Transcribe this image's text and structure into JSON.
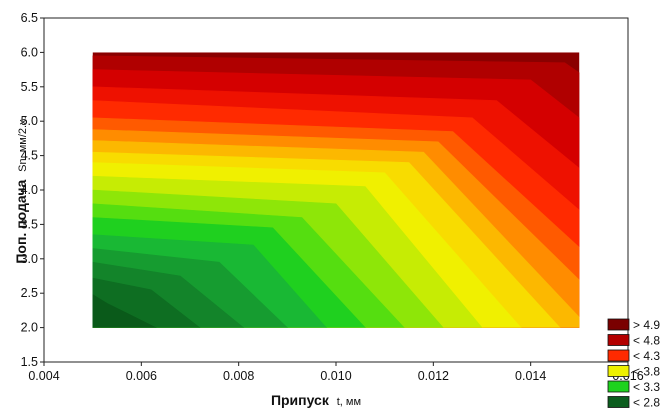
{
  "chart_data": {
    "type": "contour",
    "xlabel": "Припуск",
    "xlabel_unit": "t, мм",
    "ylabel": "Поп. подача",
    "ylabel_unit": "Sn, мм/2.х.",
    "xlim": [
      0.004,
      0.016
    ],
    "ylim": [
      1.5,
      6.5
    ],
    "x_ticks": [
      0.004,
      0.006,
      0.008,
      0.01,
      0.012,
      0.014,
      0.016
    ],
    "x_tick_labels": [
      "0.004",
      "0.006",
      "0.008",
      "0.010",
      "0.012",
      "0.014",
      "0.016"
    ],
    "y_ticks": [
      1.5,
      2.0,
      2.5,
      3.0,
      3.5,
      4.0,
      4.5,
      5.0,
      5.5,
      6.0,
      6.5
    ],
    "y_tick_labels": [
      "1.5",
      "2.0",
      "2.5",
      "3.0",
      "3.5",
      "4.0",
      "4.5",
      "5.0",
      "5.5",
      "6.0",
      "6.5"
    ],
    "data_extent": {
      "x": [
        0.005,
        0.015
      ],
      "y": [
        2.0,
        6.0
      ]
    },
    "grid": false,
    "legend_position": "bottom-right",
    "legend": [
      {
        "label": "> 4.9",
        "color": "#7a0000"
      },
      {
        "label": "< 4.8",
        "color": "#b30000"
      },
      {
        "label": "< 4.3",
        "color": "#ff2a00"
      },
      {
        "label": "< 3.8",
        "color": "#eef000"
      },
      {
        "label": "< 3.3",
        "color": "#1ed21e"
      },
      {
        "label": "< 2.8",
        "color": "#0b5d1e"
      }
    ],
    "contour_bands": [
      {
        "level": 2.4,
        "color": "#0a5a1a",
        "x_at_ymin": 0.0063,
        "x_at_kink": 0.0053,
        "y_kink": 2.35,
        "y_at_xmin": 2.48
      },
      {
        "level": 2.55,
        "color": "#0e6e22",
        "x_at_ymin": 0.0072,
        "x_at_kink": 0.0062,
        "y_kink": 2.55,
        "y_at_xmin": 2.72
      },
      {
        "level": 2.7,
        "color": "#13842a",
        "x_at_ymin": 0.0081,
        "x_at_kink": 0.0068,
        "y_kink": 2.75,
        "y_at_xmin": 2.95
      },
      {
        "level": 2.85,
        "color": "#169c30",
        "x_at_ymin": 0.009,
        "x_at_kink": 0.0076,
        "y_kink": 2.95,
        "y_at_xmin": 3.15
      },
      {
        "level": 3.0,
        "color": "#19b834",
        "x_at_ymin": 0.0098,
        "x_at_kink": 0.0083,
        "y_kink": 3.2,
        "y_at_xmin": 3.35
      },
      {
        "level": 3.15,
        "color": "#1fd01f",
        "x_at_ymin": 0.0106,
        "x_at_kink": 0.0087,
        "y_kink": 3.45,
        "y_at_xmin": 3.6
      },
      {
        "level": 3.3,
        "color": "#55de10",
        "x_at_ymin": 0.0114,
        "x_at_kink": 0.0093,
        "y_kink": 3.6,
        "y_at_xmin": 3.8
      },
      {
        "level": 3.45,
        "color": "#8ee608",
        "x_at_ymin": 0.0122,
        "x_at_kink": 0.01,
        "y_kink": 3.8,
        "y_at_xmin": 4.0
      },
      {
        "level": 3.6,
        "color": "#c6ec04",
        "x_at_ymin": 0.013,
        "x_at_kink": 0.0106,
        "y_kink": 4.05,
        "y_at_xmin": 4.2
      },
      {
        "level": 3.75,
        "color": "#f0f000",
        "x_at_ymin": 0.0138,
        "x_at_kink": 0.011,
        "y_kink": 4.25,
        "y_at_xmin": 4.4
      },
      {
        "level": 3.9,
        "color": "#f8dc00",
        "x_at_ymin": 0.0146,
        "x_at_kink": 0.0115,
        "y_kink": 4.4,
        "y_at_xmin": 4.55
      },
      {
        "level": 4.05,
        "color": "#fcb800",
        "x_at_ymin": 0.0152,
        "x_at_kink": 0.0118,
        "y_kink": 4.55,
        "y_at_xmin": 4.72
      },
      {
        "level": 4.2,
        "color": "#ff8c00",
        "x_at_ymin": 0.016,
        "x_at_kink": 0.0121,
        "y_kink": 4.7,
        "y_at_xmin": 4.88
      },
      {
        "level": 4.35,
        "color": "#ff5a00",
        "x_at_ymin": 0.0168,
        "x_at_kink": 0.0124,
        "y_kink": 4.85,
        "y_at_xmin": 5.05
      },
      {
        "level": 4.5,
        "color": "#ff2a00",
        "x_at_ymin": 0.0178,
        "x_at_kink": 0.0128,
        "y_kink": 5.05,
        "y_at_xmin": 5.3
      },
      {
        "level": 4.65,
        "color": "#ee1100",
        "x_at_ymin": 0.019,
        "x_at_kink": 0.0133,
        "y_kink": 5.3,
        "y_at_xmin": 5.5
      },
      {
        "level": 4.8,
        "color": "#d40000",
        "x_at_ymin": 0.0205,
        "x_at_kink": 0.014,
        "y_kink": 5.6,
        "y_at_xmin": 5.75
      },
      {
        "level": 4.95,
        "color": "#b00000",
        "x_at_ymin": 0.0225,
        "x_at_kink": 0.0147,
        "y_kink": 5.85,
        "y_at_xmin": 5.95
      }
    ],
    "top_color": "#8a0000"
  }
}
